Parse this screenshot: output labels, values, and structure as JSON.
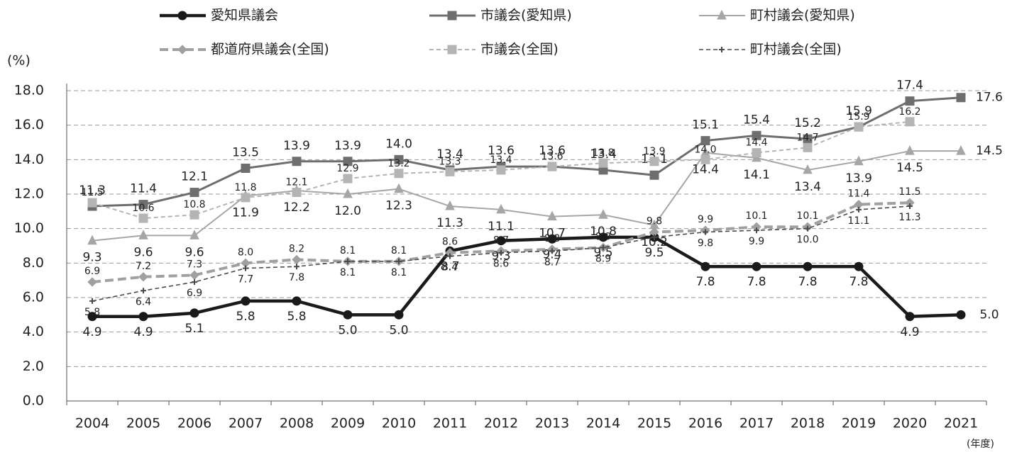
{
  "chart_data": {
    "type": "line",
    "y_label": "(%)",
    "x_label": "(年度)",
    "categories": [
      "2004",
      "2005",
      "2006",
      "2007",
      "2008",
      "2009",
      "2010",
      "2011",
      "2012",
      "2013",
      "2014",
      "2015",
      "2016",
      "2017",
      "2018",
      "2019",
      "2020",
      "2021"
    ],
    "ylim": [
      0,
      18
    ],
    "yticks": [
      {
        "value": 0,
        "label": "0.0"
      },
      {
        "value": 2,
        "label": "2.0"
      },
      {
        "value": 4,
        "label": "4.0"
      },
      {
        "value": 6,
        "label": "6.0"
      },
      {
        "value": 8,
        "label": "8.0"
      },
      {
        "value": 10,
        "label": "10.0"
      },
      {
        "value": 12,
        "label": "12.0"
      },
      {
        "value": 14,
        "label": "14.0"
      },
      {
        "value": 16,
        "label": "16.0"
      },
      {
        "value": 18,
        "label": "18.0"
      }
    ],
    "grid": true,
    "series": [
      {
        "name": "愛知県議会",
        "color": "#1a1a1a",
        "marker": "circle",
        "dashed": false,
        "values": [
          4.9,
          4.9,
          5.1,
          5.8,
          5.8,
          5.0,
          5.0,
          8.7,
          9.3,
          9.4,
          9.5,
          9.5,
          7.8,
          7.8,
          7.8,
          7.8,
          4.9,
          5.0
        ],
        "value_labels": [
          "4.9",
          "4.9",
          "5.1",
          "5.8",
          "5.8",
          "5.0",
          "5.0",
          "8.7",
          "9.3",
          "9.4",
          "9.5",
          "9.5",
          "7.8",
          "7.8",
          "7.8",
          "7.8",
          "4.9",
          "5.0"
        ]
      },
      {
        "name": "市議会(愛知県)",
        "color": "#6e6e6e",
        "marker": "square",
        "dashed": false,
        "values": [
          11.3,
          11.4,
          12.1,
          13.5,
          13.9,
          13.9,
          14.0,
          13.4,
          13.6,
          13.6,
          13.4,
          13.1,
          15.1,
          15.4,
          15.2,
          15.9,
          17.4,
          17.6
        ],
        "value_labels": [
          "11.3",
          "11.4",
          "12.1",
          "13.5",
          "13.9",
          "13.9",
          "14.0",
          "13.4",
          "13.6",
          "13.6",
          "13.4",
          "13.1",
          "15.1",
          "15.4",
          "15.2",
          "15.9",
          "17.4",
          "17.6"
        ]
      },
      {
        "name": "町村議会(愛知県)",
        "color": "#a6a6a6",
        "marker": "triangle",
        "dashed": false,
        "values": [
          9.3,
          9.6,
          9.6,
          11.9,
          12.2,
          12.0,
          12.3,
          11.3,
          11.1,
          10.7,
          10.8,
          10.2,
          14.4,
          14.1,
          13.4,
          13.9,
          14.5,
          14.5
        ],
        "value_labels": [
          "9.3",
          "9.6",
          "9.6",
          "11.9",
          "12.2",
          "12.0",
          "12.3",
          "11.3",
          "11.1",
          "10.7",
          "10.8",
          "10.2",
          "14.4",
          "14.1",
          "13.4",
          "13.9",
          "14.5",
          "14.5"
        ]
      },
      {
        "name": "都道府県議会(全国)",
        "color": "#a0a0a0",
        "marker": "diamond",
        "dashed": true,
        "values": [
          6.9,
          7.2,
          7.3,
          8.0,
          8.2,
          8.1,
          8.1,
          8.6,
          8.7,
          8.8,
          8.9,
          9.8,
          9.9,
          10.1,
          10.1,
          11.4,
          11.5,
          null
        ],
        "value_labels": [
          "6.9",
          "7.2",
          "7.3",
          "8.0",
          "8.2",
          "8.1",
          "8.1",
          "8.6",
          "8.7",
          "8.8",
          "8.9",
          "9.8",
          "9.9",
          "10.1",
          "10.1",
          "11.4",
          "11.5",
          null
        ]
      },
      {
        "name": "市議会(全国)",
        "color": "#b4b4b4",
        "marker": "square",
        "dashed": true,
        "values": [
          11.5,
          10.6,
          10.8,
          11.8,
          12.1,
          12.9,
          13.2,
          13.3,
          13.4,
          13.6,
          13.8,
          13.9,
          14.0,
          14.4,
          14.7,
          15.9,
          16.2,
          null
        ],
        "value_labels": [
          "11.5",
          "10.6",
          "10.8",
          "11.8",
          "12.1",
          "12.9",
          "13.2",
          "13.3",
          "13.4",
          "13.6",
          "13.8",
          "13.9",
          "14.0",
          "14.4",
          "14.7",
          "15.9",
          "16.2",
          null
        ]
      },
      {
        "name": "町村議会(全国)",
        "color": "#4a4a4a",
        "marker": "star",
        "dashed": true,
        "values": [
          5.8,
          6.4,
          6.9,
          7.7,
          7.8,
          8.1,
          8.1,
          8.4,
          8.6,
          8.7,
          8.9,
          9.5,
          9.8,
          9.9,
          10.0,
          11.1,
          11.3,
          null
        ],
        "value_labels": [
          "5.8",
          "6.4",
          "6.9",
          "7.7",
          "7.8",
          "8.1",
          "8.1",
          "8.4",
          "8.6",
          "8.7",
          "8.9",
          null,
          "9.8",
          "9.9",
          "10.0",
          "11.1",
          "11.3",
          null
        ]
      }
    ]
  }
}
